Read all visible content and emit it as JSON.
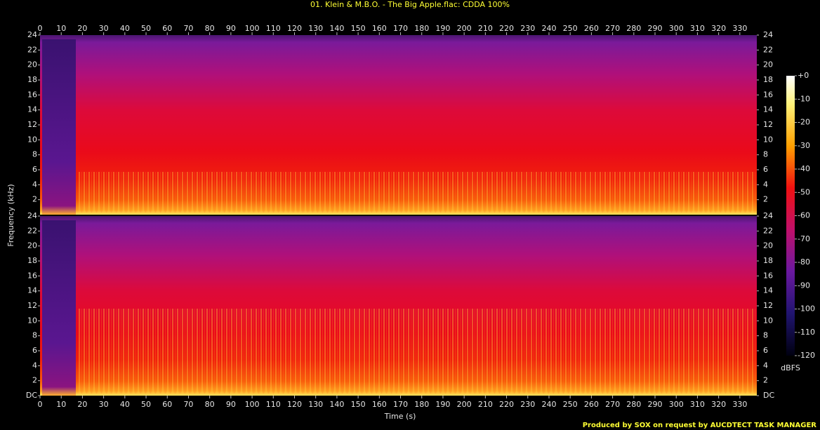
{
  "chart_data": {
    "type": "spectrogram",
    "title": "01. Klein & M.B.O. - The Big Apple.flac: CDDA 100%",
    "x_label": "Time (s)",
    "y_label": "Frequency (kHz)",
    "footer": "Produced by SOX on request by AUCDTECT TASK MANAGER",
    "xlim": [
      0,
      338
    ],
    "xticks": [
      0,
      10,
      20,
      30,
      40,
      50,
      60,
      70,
      80,
      90,
      100,
      110,
      120,
      130,
      140,
      150,
      160,
      170,
      180,
      190,
      200,
      210,
      220,
      230,
      240,
      250,
      260,
      270,
      280,
      290,
      300,
      310,
      320,
      330
    ],
    "channels": [
      {
        "ylim": [
          0,
          24
        ],
        "yticks": [
          2,
          4,
          6,
          8,
          10,
          12,
          14,
          16,
          18,
          20,
          22,
          24
        ]
      },
      {
        "ylim": [
          0,
          24
        ],
        "yticks": [
          {
            "value": 0,
            "label": "DC"
          },
          2,
          4,
          6,
          8,
          10,
          12,
          14,
          16,
          18,
          20,
          22,
          24
        ]
      }
    ],
    "colorbar": {
      "label": "dBFS",
      "lim": [
        -120,
        0
      ],
      "ticks": [
        {
          "value": 0,
          "label": "+0"
        },
        -10,
        -20,
        -30,
        -40,
        -50,
        -60,
        -70,
        -80,
        -90,
        -100,
        -110,
        -120
      ]
    }
  }
}
